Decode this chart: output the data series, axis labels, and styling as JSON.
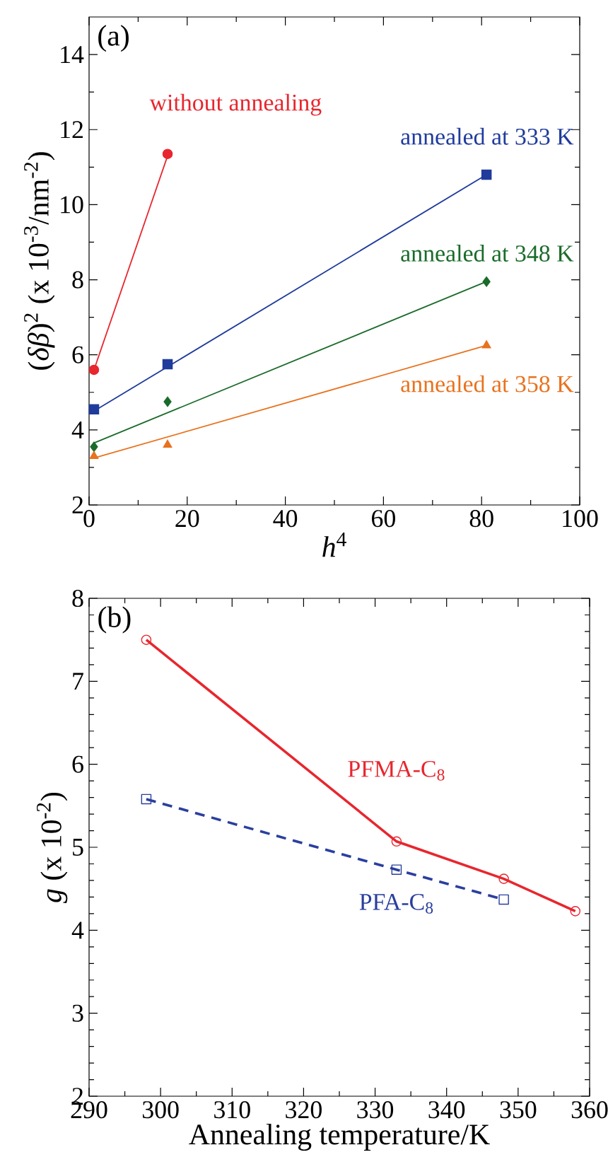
{
  "chart_data": [
    {
      "type": "scatter",
      "xlabel": "*h*$^{4}$",
      "ylabel": "(*δβ*)$^{2}$ (x 10$^{-3}$/nm$^{-2}$)",
      "annotations": [
        "(a)"
      ],
      "xlim": [
        0,
        100
      ],
      "xticks": [
        0,
        20,
        40,
        60,
        80,
        100
      ],
      "ylim": [
        2,
        15
      ],
      "yticks": [
        2,
        4,
        6,
        8,
        10,
        12,
        14
      ],
      "series": [
        {
          "name": "without annealing",
          "type": "scatter",
          "marker": "circle",
          "color": "#e8262e",
          "x": [
            1,
            16
          ],
          "values": [
            5.6,
            11.35
          ]
        },
        {
          "name": "annealed at 333 K",
          "type": "scatter",
          "marker": "square",
          "color": "#1f3b9c",
          "x": [
            1,
            16,
            81
          ],
          "values": [
            4.55,
            5.75,
            10.8
          ]
        },
        {
          "name": "annealed at 348 K",
          "type": "scatter",
          "marker": "diamond",
          "color": "#1a6b2a",
          "x": [
            1,
            16,
            81
          ],
          "values": [
            3.55,
            4.75,
            7.95
          ]
        },
        {
          "name": "annealed at 358 K",
          "type": "scatter",
          "marker": "triangle",
          "color": "#e8721e",
          "x": [
            1,
            16,
            81
          ],
          "values": [
            3.3,
            3.6,
            6.25
          ]
        },
        {
          "type": "line",
          "color": "#e8262e",
          "x": [
            1,
            16
          ],
          "values": [
            5.6,
            11.3
          ]
        },
        {
          "type": "line",
          "color": "#1f3b9c",
          "x": [
            1,
            81
          ],
          "values": [
            4.5,
            10.8
          ]
        },
        {
          "type": "line",
          "color": "#1a6b2a",
          "x": [
            1,
            81
          ],
          "values": [
            3.65,
            7.95
          ]
        },
        {
          "type": "line",
          "color": "#e8721e",
          "x": [
            1,
            81
          ],
          "values": [
            3.25,
            6.25
          ]
        }
      ]
    },
    {
      "type": "line",
      "xlabel": "Annealing temperature/K",
      "ylabel": "*g* (x 10$^{-2}$)",
      "annotations": [
        "(b)"
      ],
      "xlim": [
        290,
        360
      ],
      "xticks": [
        290,
        300,
        310,
        320,
        330,
        340,
        350,
        360
      ],
      "ylim": [
        2,
        8
      ],
      "yticks": [
        2,
        3,
        4,
        5,
        6,
        7,
        8
      ],
      "series": [
        {
          "name": "PFMA-C$_{8}$",
          "marker": "circle",
          "color": "#e8262e",
          "x": [
            298,
            333,
            348,
            358
          ],
          "values": [
            7.5,
            5.07,
            4.62,
            4.23
          ]
        },
        {
          "name": "PFA-C$_{8}$",
          "marker": "square",
          "line_style": "dashed",
          "color": "#2a3f9e",
          "x": [
            298,
            333,
            348
          ],
          "values": [
            5.58,
            4.73,
            4.37
          ]
        }
      ]
    }
  ]
}
